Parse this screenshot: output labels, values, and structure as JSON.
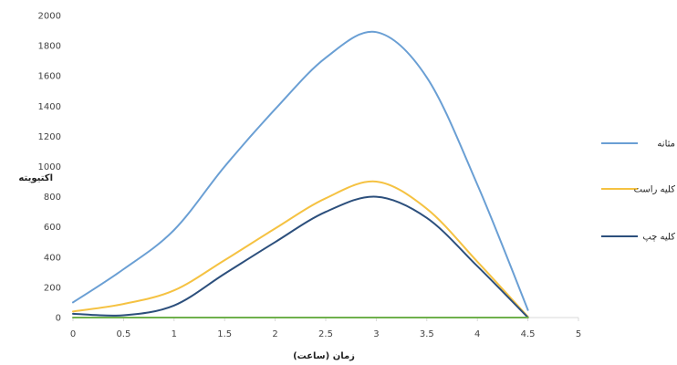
{
  "chart_data": {
    "type": "line",
    "xlabel": "زمان (ساعت)",
    "ylabel": "اکتیویته",
    "xlim": [
      0,
      5
    ],
    "ylim": [
      0,
      2000
    ],
    "x_ticks": [
      0,
      0.5,
      1,
      1.5,
      2,
      2.5,
      3,
      3.5,
      4,
      4.5,
      5
    ],
    "x_tick_labels": [
      "0",
      "0.5",
      "1",
      "1.5",
      "2",
      "2.5",
      "3",
      "3.5",
      "4",
      "4.5",
      "5"
    ],
    "y_ticks": [
      0,
      200,
      400,
      600,
      800,
      1000,
      1200,
      1400,
      1600,
      1800,
      2000
    ],
    "y_tick_labels": [
      "0",
      "200",
      "400",
      "600",
      "800",
      "1000",
      "1200",
      "1400",
      "1600",
      "1800",
      "2000"
    ],
    "grid": false,
    "legend_position": "right",
    "series": [
      {
        "name": "مثانه",
        "color": "#6a9fd4",
        "points": [
          [
            0,
            100
          ],
          [
            0.5,
            320
          ],
          [
            1,
            580
          ],
          [
            1.5,
            1000
          ],
          [
            2,
            1380
          ],
          [
            2.5,
            1720
          ],
          [
            3,
            1890
          ],
          [
            3.5,
            1590
          ],
          [
            4,
            880
          ],
          [
            4.5,
            50
          ]
        ]
      },
      {
        "name": "کلیه راست",
        "color": "#f5c242",
        "points": [
          [
            0,
            40
          ],
          [
            0.5,
            90
          ],
          [
            1,
            180
          ],
          [
            1.5,
            380
          ],
          [
            2,
            590
          ],
          [
            2.5,
            790
          ],
          [
            3,
            900
          ],
          [
            3.5,
            720
          ],
          [
            4,
            370
          ],
          [
            4.5,
            5
          ]
        ]
      },
      {
        "name": "کلیه چپ",
        "color": "#2c4f7c",
        "points": [
          [
            0,
            25
          ],
          [
            0.5,
            15
          ],
          [
            1,
            80
          ],
          [
            1.5,
            290
          ],
          [
            2,
            500
          ],
          [
            2.5,
            700
          ],
          [
            3,
            800
          ],
          [
            3.5,
            660
          ],
          [
            4,
            340
          ],
          [
            4.5,
            0
          ]
        ]
      },
      {
        "name": "",
        "color": "#6fb14c",
        "points": [
          [
            0,
            0
          ],
          [
            4.5,
            0
          ]
        ]
      }
    ]
  }
}
